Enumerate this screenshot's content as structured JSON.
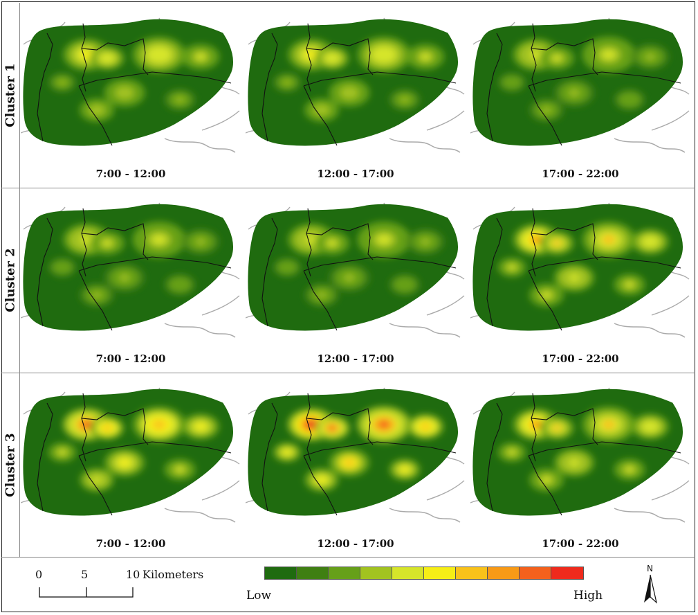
{
  "clusters": [
    {
      "label": "Cluster 1",
      "panels": [
        {
          "time": "7:00 - 12:00",
          "intensity": 0.45
        },
        {
          "time": "12:00 - 17:00",
          "intensity": 0.45
        },
        {
          "time": "17:00 - 22:00",
          "intensity": 0.35
        }
      ]
    },
    {
      "label": "Cluster 2",
      "panels": [
        {
          "time": "7:00 - 12:00",
          "intensity": 0.35
        },
        {
          "time": "12:00 - 17:00",
          "intensity": 0.35
        },
        {
          "time": "17:00 - 22:00",
          "intensity": 0.6
        }
      ]
    },
    {
      "label": "Cluster 3",
      "panels": [
        {
          "time": "7:00 - 12:00",
          "intensity": 0.7
        },
        {
          "time": "12:00 - 17:00",
          "intensity": 0.9
        },
        {
          "time": "17:00 - 22:00",
          "intensity": 0.6
        }
      ]
    }
  ],
  "scale_bar": {
    "ticks": [
      "0",
      "5",
      "10"
    ],
    "unit": "Kilometers"
  },
  "legend": {
    "low_label": "Low",
    "high_label": "High",
    "colors": [
      "#1f6b0f",
      "#3f7f12",
      "#66a019",
      "#a2c320",
      "#d6e52a",
      "#f6ee16",
      "#f9c21a",
      "#f89a16",
      "#f4611c",
      "#ef2a1c"
    ]
  },
  "north_arrow": {
    "label": "N"
  },
  "colors": {
    "base": "#1f6b0f",
    "boundary": "#111111",
    "road": "#aaaaaa"
  }
}
